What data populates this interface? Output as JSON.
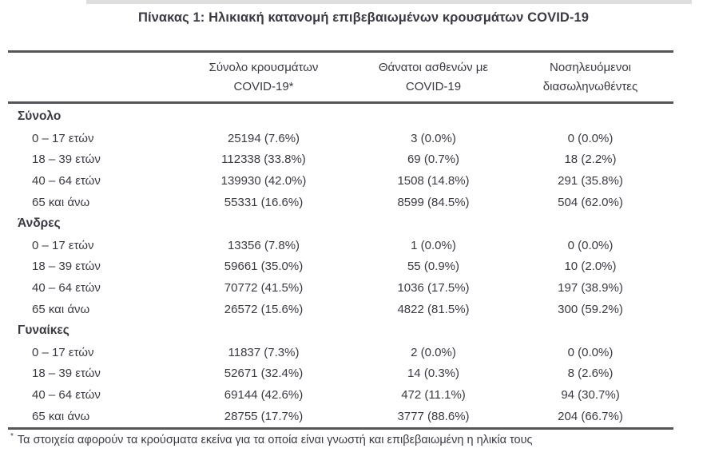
{
  "page": {
    "title": "Πίνακας 1: Ηλικιακή κατανομή επιβεβαιωμένων κρουσμάτων COVID-19",
    "footnote_marker": "*",
    "footnote": "Τα στοιχεία αφορούν τα κρούσματα εκείνα για τα οποία είναι γνωστή και επιβεβαιωμένη η ηλικία τους"
  },
  "colors": {
    "text": "#3a3a44",
    "rule": "#55555a"
  },
  "table": {
    "columns": [
      {
        "line1": "Σύνολο κρουσμάτων",
        "line2": "COVID-19*"
      },
      {
        "line1": "Θάνατοι ασθενών με",
        "line2": "COVID-19"
      },
      {
        "line1": "Νοσηλευόμενοι",
        "line2": "διασωληνωθέντες"
      }
    ],
    "sections": [
      {
        "label": "Σύνολο",
        "rows": [
          {
            "age": "0 – 17 ετών",
            "cases": "25194 (7.6%)",
            "deaths": "3 (0.0%)",
            "intubated": "0 (0.0%)"
          },
          {
            "age": "18 – 39 ετών",
            "cases": "112338 (33.8%)",
            "deaths": "69 (0.7%)",
            "intubated": "18 (2.2%)"
          },
          {
            "age": "40 – 64 ετών",
            "cases": "139930 (42.0%)",
            "deaths": "1508 (14.8%)",
            "intubated": "291 (35.8%)"
          },
          {
            "age": "65 και άνω",
            "cases": "55331 (16.6%)",
            "deaths": "8599 (84.5%)",
            "intubated": "504 (62.0%)"
          }
        ]
      },
      {
        "label": "Άνδρες",
        "rows": [
          {
            "age": "0 – 17 ετών",
            "cases": "13356 (7.8%)",
            "deaths": "1 (0.0%)",
            "intubated": "0 (0.0%)"
          },
          {
            "age": "18 – 39 ετών",
            "cases": "59661 (35.0%)",
            "deaths": "55 (0.9%)",
            "intubated": "10 (2.0%)"
          },
          {
            "age": "40 – 64 ετών",
            "cases": "70772 (41.5%)",
            "deaths": "1036 (17.5%)",
            "intubated": "197 (38.9%)"
          },
          {
            "age": "65 και άνω",
            "cases": "26572 (15.6%)",
            "deaths": "4822 (81.5%)",
            "intubated": "300 (59.2%)"
          }
        ]
      },
      {
        "label": "Γυναίκες",
        "rows": [
          {
            "age": "0 – 17 ετών",
            "cases": "11837 (7.3%)",
            "deaths": "2 (0.0%)",
            "intubated": "0 (0.0%)"
          },
          {
            "age": "18 – 39 ετών",
            "cases": "52671 (32.4%)",
            "deaths": "14 (0.3%)",
            "intubated": "8 (2.6%)"
          },
          {
            "age": "40 – 64 ετών",
            "cases": "69144 (42.6%)",
            "deaths": "472 (11.1%)",
            "intubated": "94 (30.7%)"
          },
          {
            "age": "65 και άνω",
            "cases": "28755 (17.7%)",
            "deaths": "3777 (88.6%)",
            "intubated": "204 (66.7%)"
          }
        ]
      }
    ]
  }
}
